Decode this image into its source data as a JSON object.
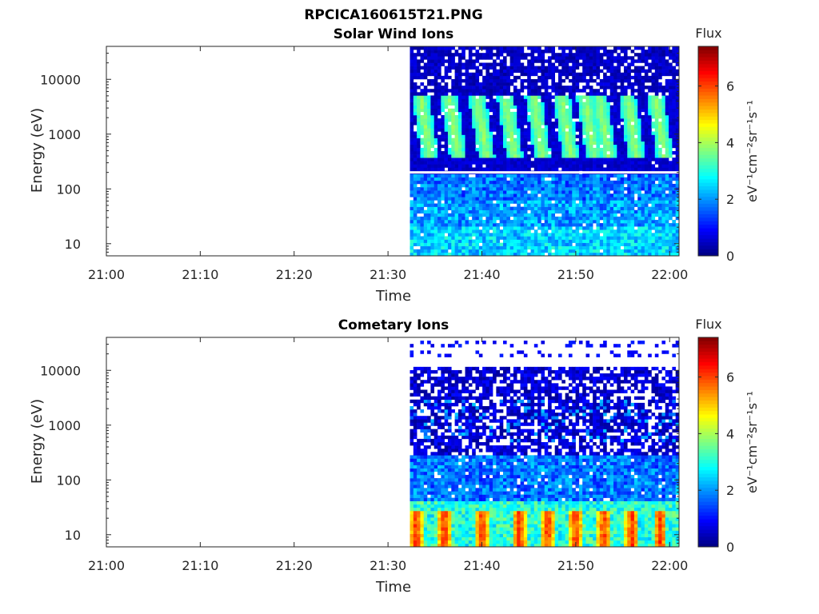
{
  "figure_title": "RPCICA160615T21.PNG",
  "chart_data": [
    {
      "type": "heatmap",
      "title": "Solar Wind Ions",
      "xlabel": "Time",
      "ylabel": "Energy (eV)",
      "x_ticks": [
        "21:00",
        "21:10",
        "21:20",
        "21:30",
        "21:40",
        "21:50",
        "22:00"
      ],
      "xlim": [
        "21:00",
        "22:01"
      ],
      "y_scale": "log",
      "y_ticks": [
        "10",
        "100",
        "1000",
        "10000"
      ],
      "ylim": [
        6,
        40000
      ],
      "data_start": "21:32:20",
      "data_end": "22:01",
      "energy_gap_eV": 200,
      "blob_center_times": [
        "21:34",
        "21:37",
        "21:40",
        "21:43",
        "21:46",
        "21:49",
        "21:51:30",
        "21:53",
        "21:56",
        "21:59"
      ],
      "blob_energy_range_eV": [
        350,
        5000
      ],
      "colorbar": {
        "title": "Flux",
        "label": "eV⁻¹cm⁻²sr⁻¹s⁻¹",
        "ticks": [
          "0",
          "2",
          "4",
          "6"
        ],
        "range": [
          0,
          7.4
        ],
        "colormap": "jet"
      }
    },
    {
      "type": "heatmap",
      "title": "Cometary Ions",
      "xlabel": "Time",
      "ylabel": "Energy (eV)",
      "x_ticks": [
        "21:00",
        "21:10",
        "21:20",
        "21:30",
        "21:40",
        "21:50",
        "22:00"
      ],
      "xlim": [
        "21:00",
        "22:01"
      ],
      "y_scale": "log",
      "y_ticks": [
        "10",
        "100",
        "1000",
        "10000"
      ],
      "ylim": [
        6,
        40000
      ],
      "data_start": "21:32:20",
      "data_end": "22:01",
      "data_top_eV": 11000,
      "sparse_points_eV": [
        20000,
        30000
      ],
      "hot_stripe_times": [
        "21:33",
        "21:36",
        "21:40",
        "21:44",
        "21:47",
        "21:50",
        "21:53",
        "21:56",
        "21:59"
      ],
      "colorbar": {
        "title": "Flux",
        "label": "eV⁻¹cm⁻²sr⁻¹s⁻¹",
        "ticks": [
          "0",
          "2",
          "4",
          "6"
        ],
        "range": [
          0,
          7.4
        ],
        "colormap": "jet"
      }
    }
  ]
}
